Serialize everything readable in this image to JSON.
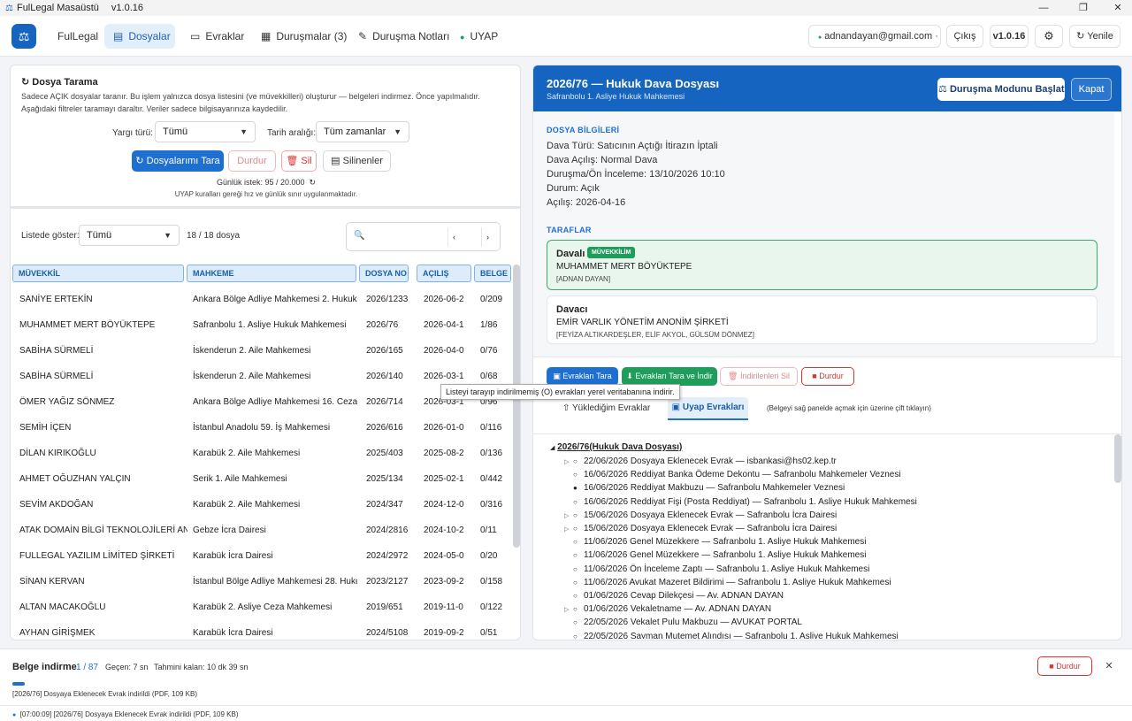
{
  "window": {
    "title": "FulLegal Masaüstü",
    "version": "v1.0.16"
  },
  "nav": {
    "brand": "FulLegal",
    "tabs": [
      {
        "label": "Dosyalar"
      },
      {
        "label": "Evraklar"
      },
      {
        "label": "Duruşmalar (3)"
      },
      {
        "label": "Duruşma Notları"
      },
      {
        "label": "UYAP"
      }
    ],
    "email": "adnandayan@gmail.com · Pr...",
    "logout": "Çıkış",
    "version": "v1.0.16",
    "refresh": "↻ Yenile"
  },
  "scan": {
    "title": "Dosya Tarama",
    "description": "Sadece AÇIK dosyalar taranır. Bu işlem yalnızca dosya listesini (ve müvekkilleri) oluşturur — belgeleri indirmez. Önce yapılmalıdır. Aşağıdaki filtreler taramayı daraltır. Veriler sadece bilgisayarınıza kaydedilir.",
    "yargi_label": "Yargı türü:",
    "yargi_value": "Tümü",
    "tarih_label": "Tarih aralığı:",
    "tarih_value": "Tüm zamanlar",
    "btn_scan": "Dosyalarımı Tara",
    "btn_stop": "Durdur",
    "btn_delete": "Sil",
    "btn_deleted": "Silinenler",
    "daily": "Günlük istek: 95 / 20.000",
    "rules": "UYAP kuralları gereği hız ve günlük sınır uygulanmaktadır."
  },
  "list": {
    "show_label": "Listede göster:",
    "show_value": "Tümü",
    "count": "18 / 18 dosya",
    "headers": [
      "MÜVEKKİL",
      "MAHKEME",
      "DOSYA NO",
      "AÇILIŞ",
      "BELGE"
    ],
    "rows": [
      [
        "SANİYE ERTEKİN",
        "Ankara Bölge Adliye Mahkemesi 2. Hukuk",
        "2026/1233",
        "2026-06-2",
        "0/209"
      ],
      [
        "MUHAMMET MERT BÖYÜKTEPE",
        "Safranbolu 1. Asliye Hukuk Mahkemesi",
        "2026/76",
        "2026-04-1",
        "1/86"
      ],
      [
        "SABİHA SÜRMELİ",
        "İskenderun 2. Aile Mahkemesi",
        "2026/165",
        "2026-04-0",
        "0/76"
      ],
      [
        "SABİHA SÜRMELİ",
        "İskenderun 2. Aile Mahkemesi",
        "2026/140",
        "2026-03-1",
        "0/68"
      ],
      [
        "ÖMER YAĞIZ SÖNMEZ",
        "Ankara Bölge Adliye Mahkemesi 16. Ceza",
        "2026/714",
        "2026-03-1",
        "0/96"
      ],
      [
        "SEMİH İÇEN",
        "İstanbul Anadolu 59. İş Mahkemesi",
        "2026/616",
        "2026-01-0",
        "0/116"
      ],
      [
        "DİLAN KIRIKOĞLU",
        "Karabük 2. Aile Mahkemesi",
        "2025/403",
        "2025-08-2",
        "0/136"
      ],
      [
        "AHMET OĞUZHAN YALÇIN",
        "Serik 1. Aile Mahkemesi",
        "2025/134",
        "2025-02-1",
        "0/442"
      ],
      [
        "SEVİM AKDOĞAN",
        "Karabük 2. Aile Mahkemesi",
        "2024/347",
        "2024-12-0",
        "0/316"
      ],
      [
        "ATAK DOMAİN BİLGİ TEKNOLOJİLERİ ANO",
        "Gebze İcra Dairesi",
        "2024/2816",
        "2024-10-2",
        "0/11"
      ],
      [
        "FULLEGAL YAZILIM LİMİTED ŞİRKETİ",
        "Karabük İcra Dairesi",
        "2024/2972",
        "2024-05-0",
        "0/20"
      ],
      [
        "SİNAN KERVAN",
        "İstanbul Bölge Adliye Mahkemesi 28. Huku",
        "2023/2127",
        "2023-09-2",
        "0/158"
      ],
      [
        "ALTAN MACAKOĞLU",
        "Karabük 2. Asliye Ceza Mahkemesi",
        "2019/651",
        "2019-11-0",
        "0/122"
      ],
      [
        "AYHAN GİRİŞMEK",
        "Karabük İcra Dairesi",
        "2024/5108",
        "2019-09-2",
        "0/51"
      ]
    ]
  },
  "detail": {
    "title": "2026/76 — Hukuk Dava Dosyası",
    "subtitle": "Safranbolu 1. Asliye Hukuk Mahkemesi",
    "btn_hearing": "Duruşma Modunu Başlat",
    "btn_close": "Kapat",
    "info_heading": "DOSYA BİLGİLERİ",
    "info": [
      "Dava Türü: Satıcının Açtığı İtirazın İptali",
      "Dava Açılış: Normal Dava",
      "Duruşma/Ön İnceleme: 13/10/2026 10:10",
      "Durum: Açık",
      "Açılış: 2026-04-16"
    ],
    "parties_heading": "TARAFLAR",
    "party1": {
      "role": "Davalı",
      "badge": "MÜVEKKİLİM",
      "name": "MUHAMMET MERT BÖYÜKTEPE",
      "lawyers": "[ADNAN DAYAN]"
    },
    "party2": {
      "role": "Davacı",
      "name": "EMİR VARLIK YÖNETİM ANONİM ŞİRKETİ",
      "lawyers": "[FEYİZA ALTIKARDEŞLER, ELİF AKYOL, GÜLSÜM DÖNMEZ]"
    },
    "btn_scan_docs": "Evrakları Tara",
    "btn_scan_download": "Evrakları Tara ve İndir",
    "btn_delete_downloaded": "İndirilenleri Sil",
    "btn_stop": "Durdur",
    "tooltip": "Listeyi tarayıp indirilmemiş (O) evrakları yerel veritabanına indirir.",
    "tab_uploaded": "Yüklediğim Evraklar",
    "tab_uyap": "Uyap Evrakları",
    "hint": "(Belgeyi sağ panelde açmak için üzerine çift tıklayın)",
    "tree_root": "2026/76(Hukuk Dava Dosyası)",
    "tree": [
      {
        "exp": "▷",
        "mark": "○",
        "text": "22/06/2026  Dosyaya Eklenecek Evrak  — isbankasi@hs02.kep.tr"
      },
      {
        "exp": "",
        "mark": "○",
        "text": "16/06/2026  Reddiyat Banka Ödeme Dekontu  — Safranbolu Mahkemeler Veznesi"
      },
      {
        "exp": "",
        "mark": "●",
        "text": "16/06/2026  Reddiyat Makbuzu  — Safranbolu Mahkemeler Veznesi"
      },
      {
        "exp": "",
        "mark": "○",
        "text": "16/06/2026  Reddiyat Fişi (Posta Reddiyat)  — Safranbolu 1. Asliye Hukuk Mahkemesi"
      },
      {
        "exp": "▷",
        "mark": "○",
        "text": "15/06/2026  Dosyaya Eklenecek Evrak  — Safranbolu İcra Dairesi"
      },
      {
        "exp": "▷",
        "mark": "○",
        "text": "15/06/2026  Dosyaya Eklenecek Evrak  — Safranbolu İcra Dairesi"
      },
      {
        "exp": "",
        "mark": "○",
        "text": "11/06/2026  Genel Müzekkere  — Safranbolu 1. Asliye Hukuk Mahkemesi"
      },
      {
        "exp": "",
        "mark": "○",
        "text": "11/06/2026  Genel Müzekkere  — Safranbolu 1. Asliye Hukuk Mahkemesi"
      },
      {
        "exp": "",
        "mark": "○",
        "text": "11/06/2026  Ön İnceleme Zaptı  — Safranbolu 1. Asliye Hukuk Mahkemesi"
      },
      {
        "exp": "",
        "mark": "○",
        "text": "11/06/2026  Avukat Mazeret Bildirimi  — Safranbolu 1. Asliye Hukuk Mahkemesi"
      },
      {
        "exp": "",
        "mark": "○",
        "text": "01/06/2026  Cevap Dilekçesi  — Av. ADNAN DAYAN"
      },
      {
        "exp": "▷",
        "mark": "○",
        "text": "01/06/2026  Vekaletname  — Av. ADNAN DAYAN"
      },
      {
        "exp": "",
        "mark": "○",
        "text": "22/05/2026  Vekalet Pulu Makbuzu  — AVUKAT PORTAL"
      },
      {
        "exp": "",
        "mark": "○",
        "text": "22/05/2026  Sayman Mutemet Alındısı  — Safranbolu 1. Asliye Hukuk Mahkemesi"
      }
    ]
  },
  "download": {
    "title": "Belge indirme",
    "progress": "1 / 87",
    "progress_fraction": 0.0115,
    "elapsed": "Geçen: 7 sn",
    "remaining": "Tahmini kalan: 10 dk 39 sn",
    "current": "[2026/76] Dosyaya Eklenecek Evrak indirildi (PDF, 109 KB)",
    "btn_stop": "Durdur",
    "log": "[07:00:09] [2026/76] Dosyaya Eklenecek Evrak indirildi (PDF, 109 KB)"
  },
  "colors": {
    "accent": "#1f6fd0",
    "header_blue": "#1565c0",
    "danger": "#d33",
    "success": "#1e9e5a"
  }
}
